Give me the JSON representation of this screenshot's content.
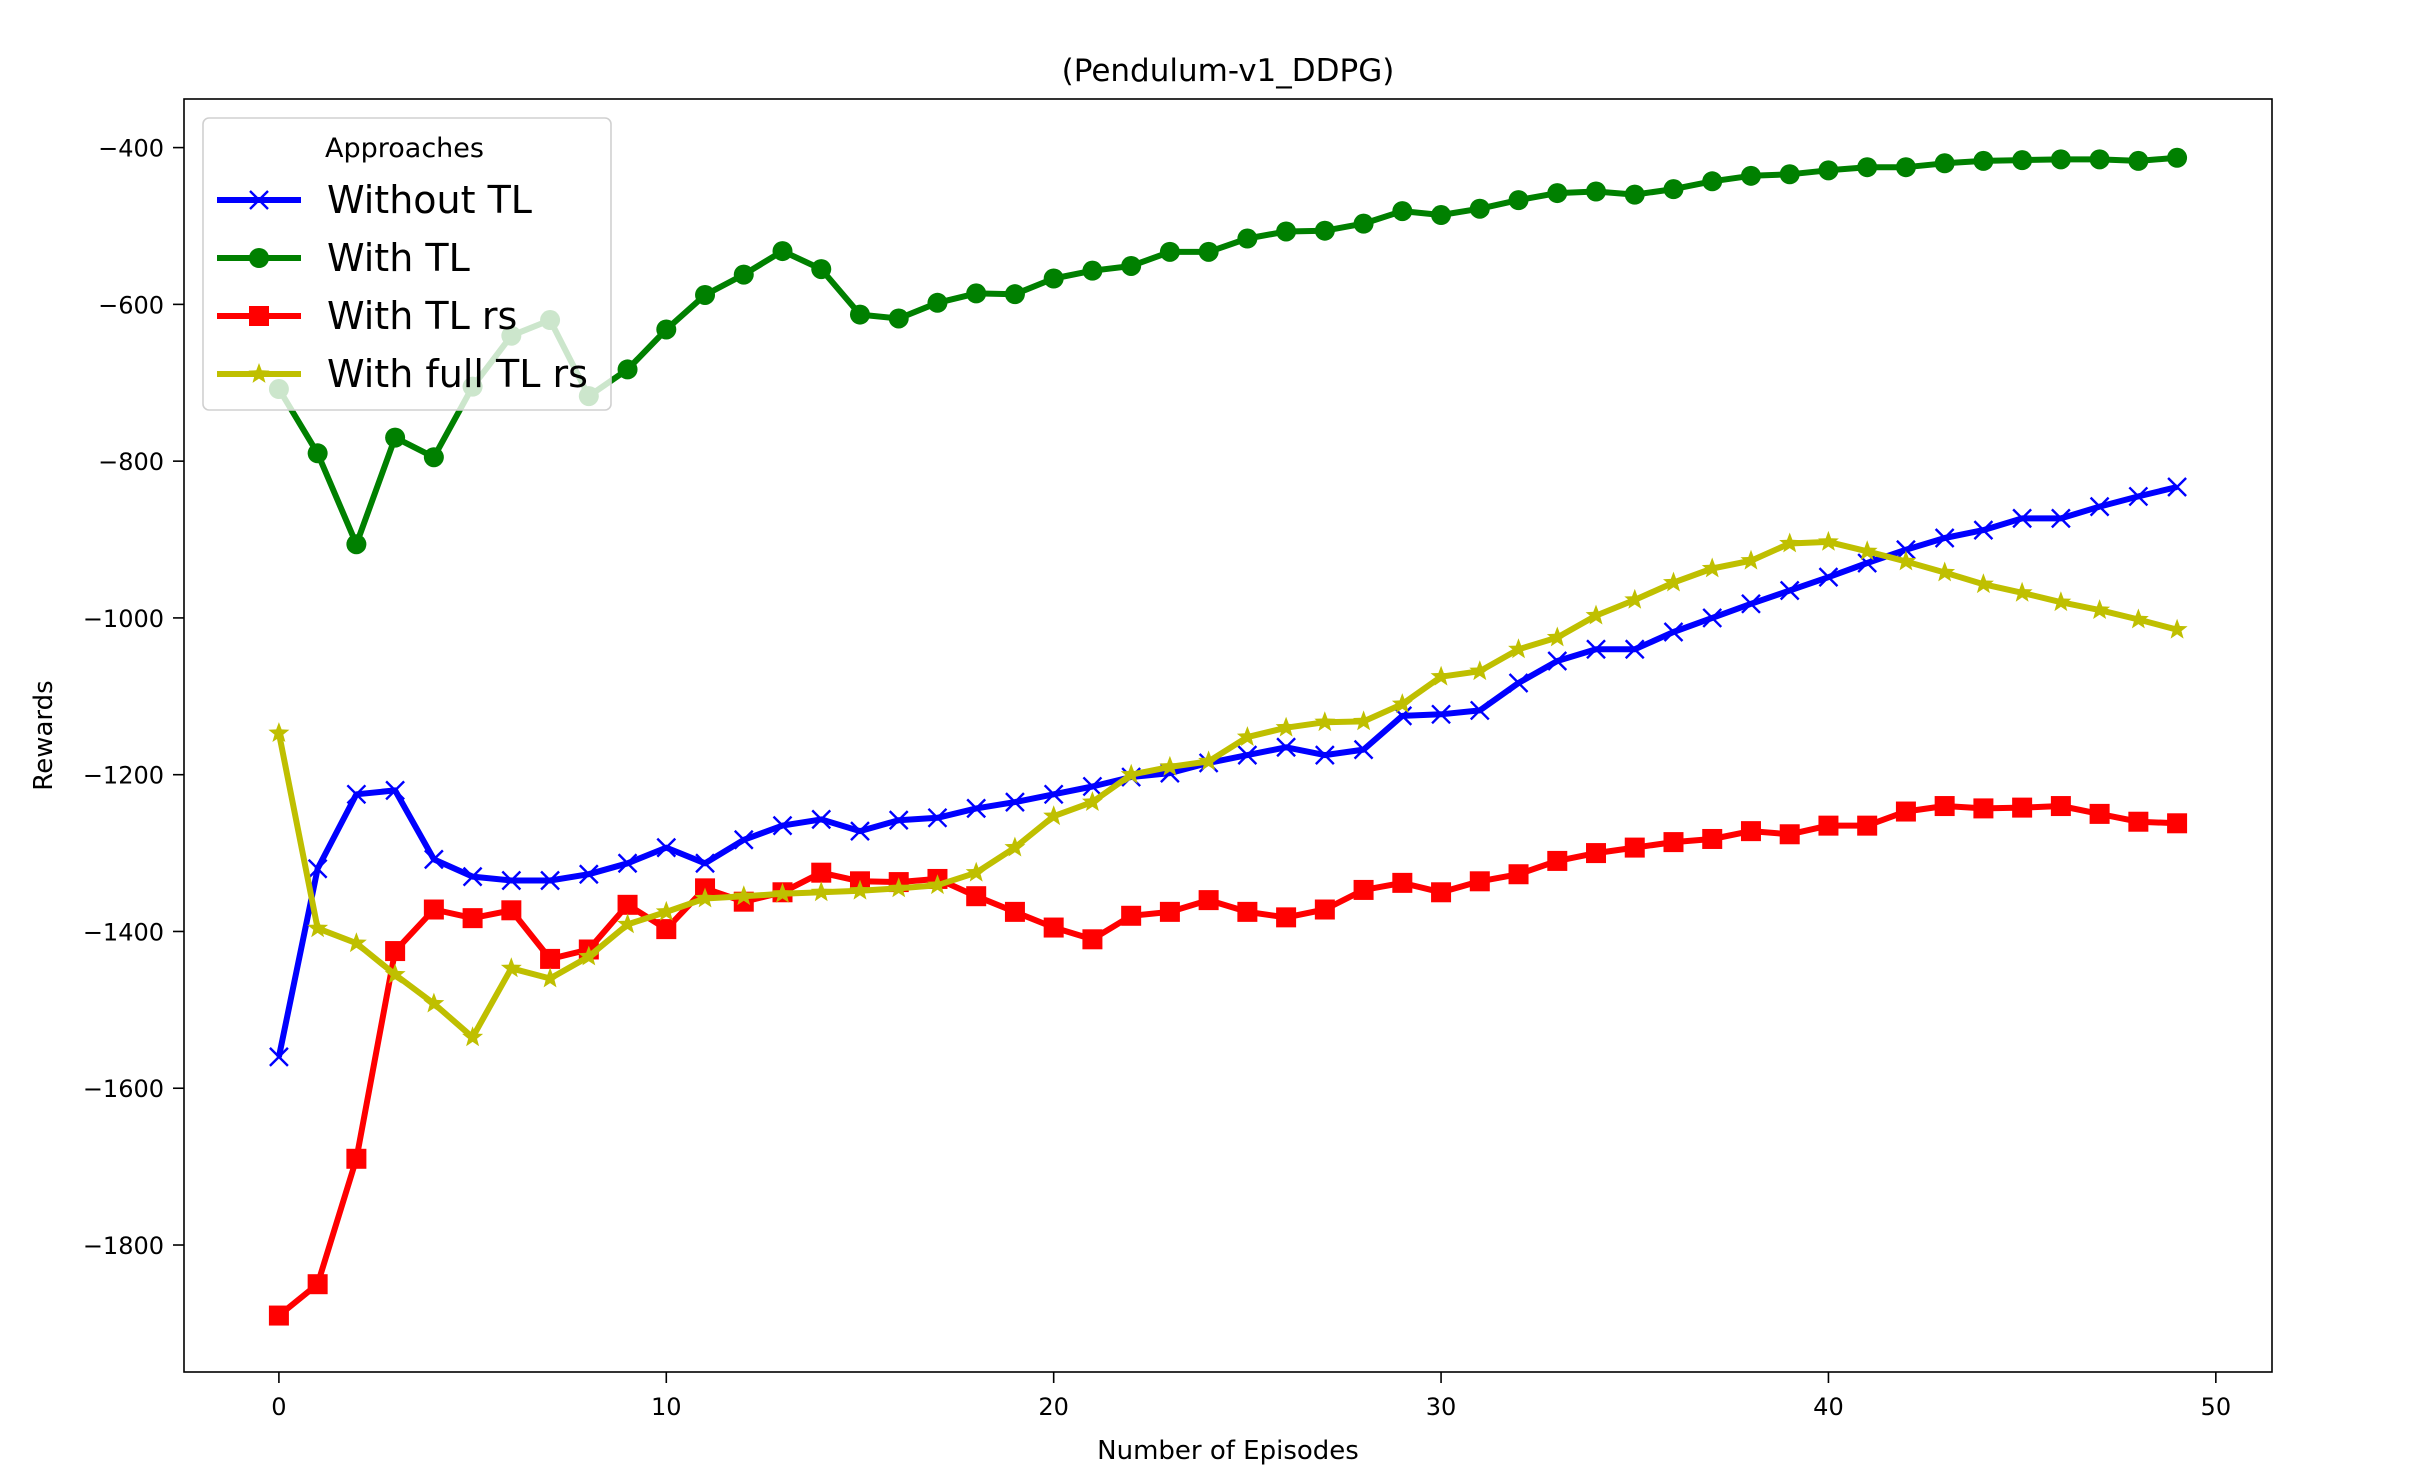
{
  "chart_data": {
    "type": "line",
    "title": "(Pendulum-v1_DDPG)",
    "xlabel": "Number of Episodes",
    "ylabel": "Rewards",
    "xlim": [
      -2.45,
      51.45
    ],
    "ylim": [
      -1962,
      -338
    ],
    "xticks": [
      0,
      10,
      20,
      30,
      40,
      50
    ],
    "yticks": [
      -400,
      -600,
      -800,
      -1000,
      -1200,
      -1400,
      -1600,
      -1800
    ],
    "ytick_labels": [
      "−400",
      "−600",
      "−800",
      "−1000",
      "−1200",
      "−1400",
      "−1600",
      "−1800"
    ],
    "grid": false,
    "legend": {
      "title": "Approaches",
      "placement": "top-left"
    },
    "x": [
      0,
      1,
      2,
      3,
      4,
      5,
      6,
      7,
      8,
      9,
      10,
      11,
      12,
      13,
      14,
      15,
      16,
      17,
      18,
      19,
      20,
      21,
      22,
      23,
      24,
      25,
      26,
      27,
      28,
      29,
      30,
      31,
      32,
      33,
      34,
      35,
      36,
      37,
      38,
      39,
      40,
      41,
      42,
      43,
      44,
      45,
      46,
      47,
      48,
      49
    ],
    "series": [
      {
        "name": "Without TL",
        "color": "#0000ff",
        "marker": "x",
        "values": [
          -1560,
          -1320,
          -1225,
          -1220,
          -1308,
          -1330,
          -1335,
          -1335,
          -1327,
          -1313,
          -1293,
          -1313,
          -1283,
          -1265,
          -1257,
          -1272,
          -1258,
          -1255,
          -1243,
          -1235,
          -1225,
          -1215,
          -1203,
          -1198,
          -1185,
          -1175,
          -1165,
          -1175,
          -1168,
          -1125,
          -1123,
          -1118,
          -1083,
          -1055,
          -1040,
          -1040,
          -1018,
          -1000,
          -982,
          -965,
          -948,
          -930,
          -913,
          -898,
          -888,
          -873,
          -873,
          -858,
          -845,
          -833
        ]
      },
      {
        "name": "With TL",
        "color": "#008000",
        "marker": "circle",
        "values": [
          -708,
          -790,
          -906,
          -770,
          -795,
          -705,
          -640,
          -620,
          -717,
          -683,
          -632,
          -588,
          -562,
          -532,
          -555,
          -613,
          -618,
          -598,
          -586,
          -587,
          -567,
          -557,
          -551,
          -533,
          -533,
          -516,
          -507,
          -506,
          -497,
          -481,
          -486,
          -478,
          -467,
          -458,
          -456,
          -460,
          -453,
          -443,
          -436,
          -434,
          -429,
          -425,
          -425,
          -420,
          -417,
          -416,
          -415,
          -415,
          -417,
          -413
        ]
      },
      {
        "name": "With TL rs",
        "color": "#ff0000",
        "marker": "square",
        "values": [
          -1890,
          -1850,
          -1690,
          -1425,
          -1372,
          -1383,
          -1373,
          -1435,
          -1423,
          -1366,
          -1397,
          -1345,
          -1362,
          -1350,
          -1325,
          -1336,
          -1337,
          -1333,
          -1355,
          -1375,
          -1395,
          -1410,
          -1380,
          -1375,
          -1360,
          -1375,
          -1382,
          -1372,
          -1347,
          -1338,
          -1350,
          -1336,
          -1327,
          -1310,
          -1300,
          -1293,
          -1286,
          -1282,
          -1272,
          -1276,
          -1265,
          -1265,
          -1247,
          -1240,
          -1243,
          -1242,
          -1240,
          -1250,
          -1260,
          -1262
        ]
      },
      {
        "name": "With full TL rs",
        "color": "#bfbf00",
        "marker": "star",
        "values": [
          -1147,
          -1396,
          -1415,
          -1455,
          -1492,
          -1535,
          -1447,
          -1460,
          -1432,
          -1391,
          -1375,
          -1358,
          -1355,
          -1352,
          -1350,
          -1348,
          -1345,
          -1341,
          -1325,
          -1293,
          -1253,
          -1235,
          -1200,
          -1190,
          -1183,
          -1152,
          -1140,
          -1133,
          -1132,
          -1110,
          -1075,
          -1068,
          -1040,
          -1025,
          -997,
          -977,
          -955,
          -937,
          -927,
          -905,
          -903,
          -915,
          -928,
          -942,
          -957,
          -968,
          -980,
          -990,
          -1002,
          -1015
        ]
      }
    ]
  }
}
